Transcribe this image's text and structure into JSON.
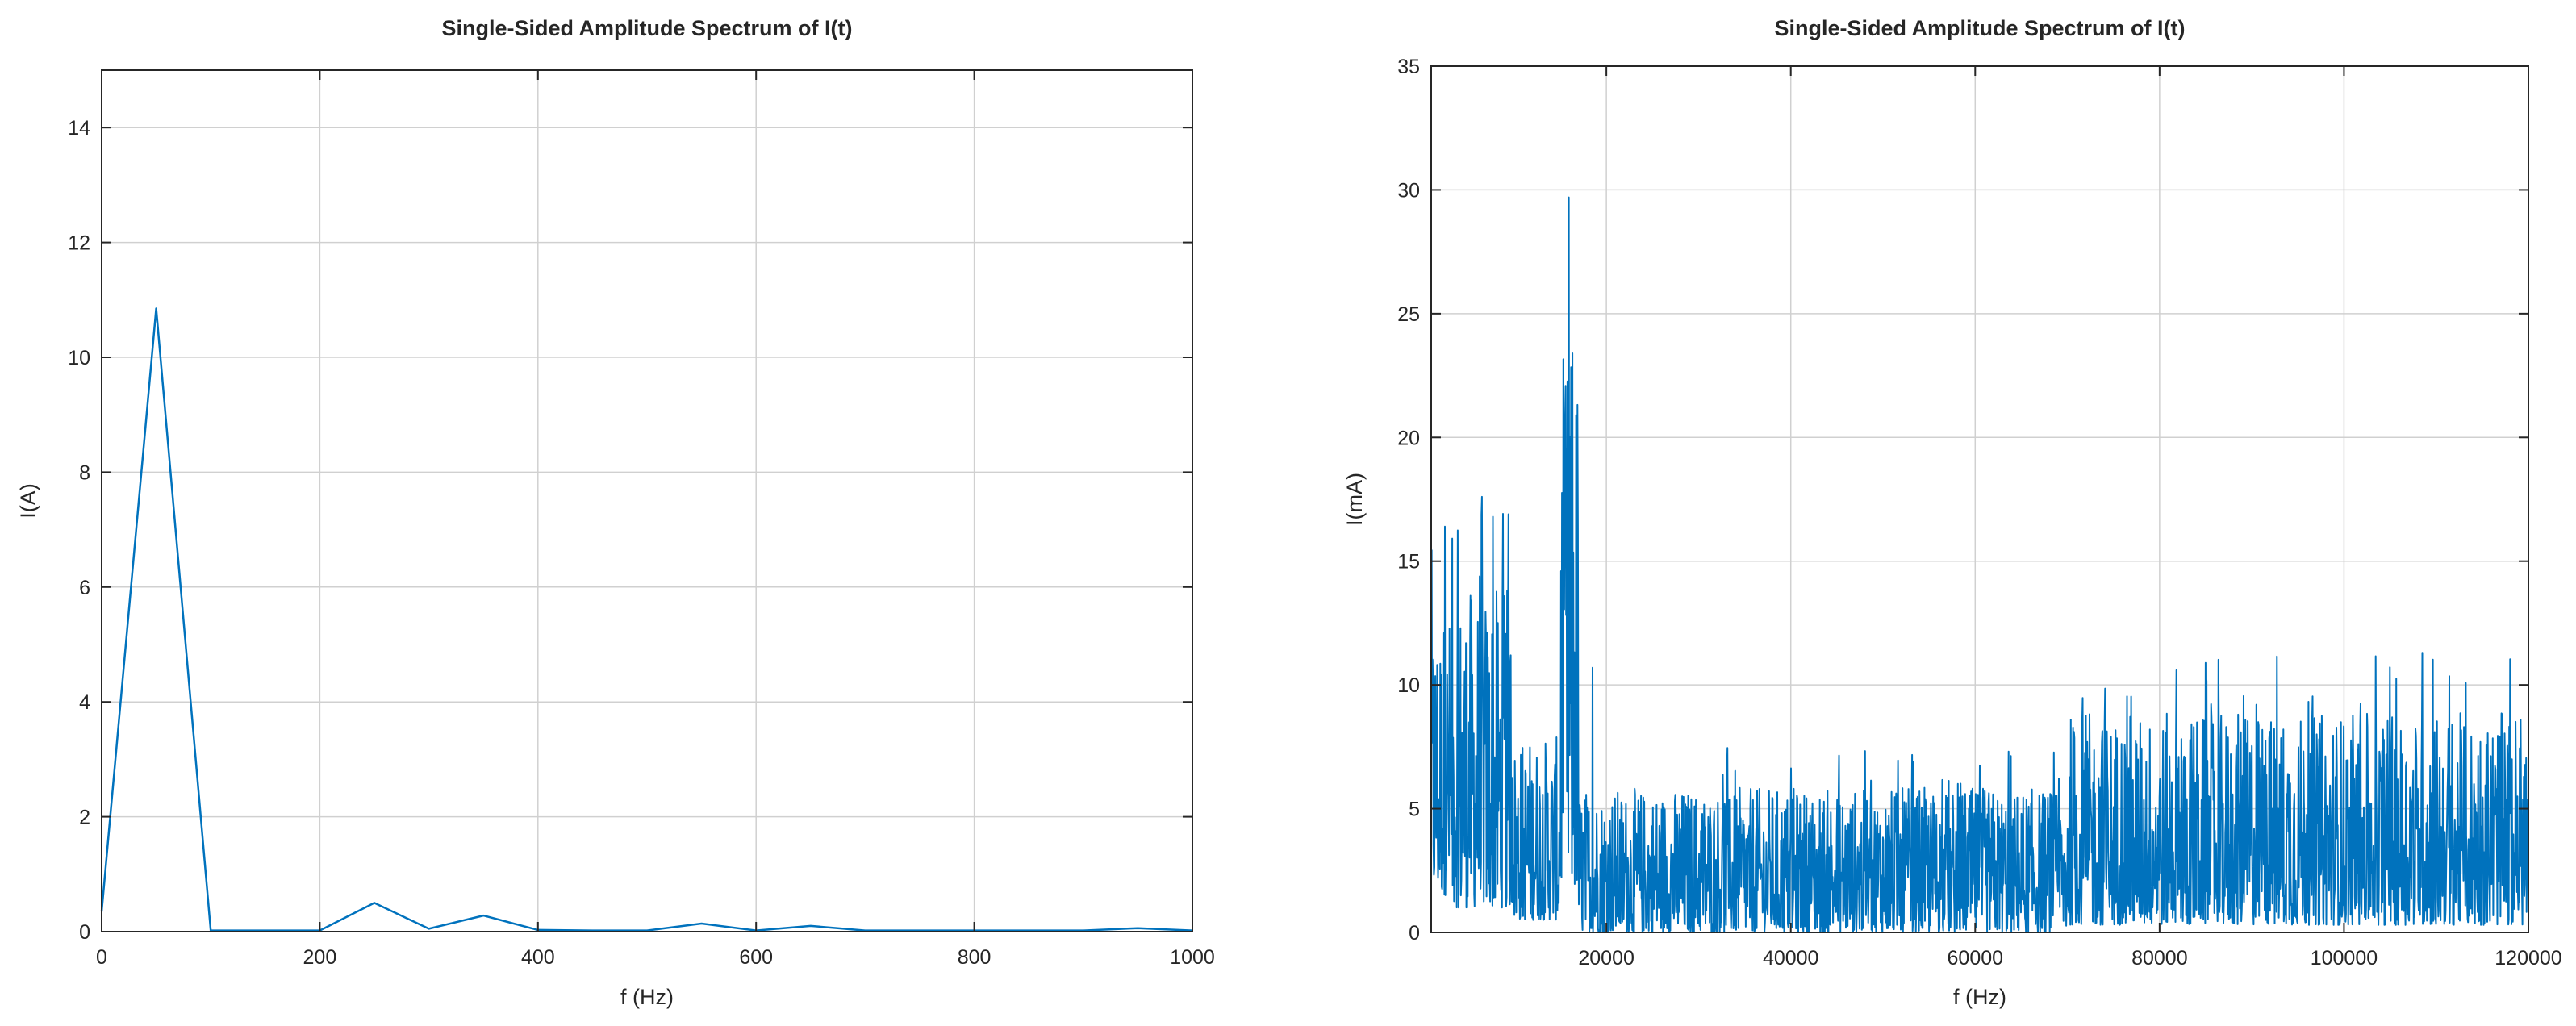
{
  "colors": {
    "series": "#0072bd",
    "grid": "#d0d0d0",
    "axes": "#262626",
    "background": "#ffffff"
  },
  "chart_data": [
    {
      "type": "line",
      "title": "Single-Sided Amplitude Spectrum of I(t)",
      "xlabel": "f (Hz)",
      "ylabel": "I(A)",
      "xlim": [
        0,
        1000
      ],
      "ylim": [
        0,
        15
      ],
      "xticks": [
        0,
        200,
        400,
        600,
        800,
        1000
      ],
      "yticks": [
        0,
        2,
        4,
        6,
        8,
        10,
        12,
        14
      ],
      "xtick_labels": [
        "0",
        "200",
        "400",
        "600",
        "800",
        "1000"
      ],
      "ytick_labels": [
        "0",
        "2",
        "4",
        "6",
        "8",
        "10",
        "12",
        "14"
      ],
      "grid": true,
      "series": [
        {
          "x": [
            0,
            50,
            100,
            150,
            200,
            250,
            300,
            350,
            400,
            450,
            500,
            550,
            600,
            650,
            700,
            750,
            800,
            850,
            900,
            950,
            1000
          ],
          "values": [
            0.35,
            10.85,
            0.02,
            0.02,
            0.02,
            0.5,
            0.05,
            0.28,
            0.03,
            0.02,
            0.02,
            0.14,
            0.02,
            0.1,
            0.02,
            0.02,
            0.02,
            0.02,
            0.02,
            0.06,
            0.02
          ]
        }
      ]
    },
    {
      "type": "line",
      "title": "Single-Sided Amplitude Spectrum of I(t)",
      "xlabel": "f (Hz)",
      "ylabel": "I(mA)",
      "xlim": [
        1000,
        120000
      ],
      "ylim": [
        0,
        35
      ],
      "xticks": [
        20000,
        40000,
        60000,
        80000,
        100000,
        120000
      ],
      "yticks": [
        0,
        5,
        10,
        15,
        20,
        25,
        30,
        35
      ],
      "xtick_labels": [
        "20000",
        "40000",
        "60000",
        "80000",
        "100000",
        "120000"
      ],
      "ytick_labels": [
        "0",
        "5",
        "10",
        "15",
        "20",
        "25",
        "30",
        "35"
      ],
      "grid": true,
      "series": [
        {
          "x": [
            1000,
            16000,
            120000
          ],
          "values": [
            7.5,
            29.7,
            3.0
          ],
          "noise_bands": [
            {
              "x_from": 1000,
              "x_to": 3000,
              "y_low": 1.5,
              "y_high": 16.4
            },
            {
              "x_from": 3000,
              "x_to": 10000,
              "y_low": 1.0,
              "y_high": 17.6
            },
            {
              "x_from": 10000,
              "x_to": 15000,
              "y_low": 0.5,
              "y_high": 10.0
            },
            {
              "x_from": 15000,
              "x_to": 17000,
              "y_low": 1.5,
              "y_high": 29.7
            },
            {
              "x_from": 17000,
              "x_to": 70000,
              "y_low": 0.0,
              "y_high": 7.5
            },
            {
              "x_from": 70000,
              "x_to": 120000,
              "y_low": 0.3,
              "y_high": 11.3
            }
          ],
          "peaks": [
            {
              "x": 2500,
              "value": 16.4
            },
            {
              "x": 6500,
              "value": 17.6
            },
            {
              "x": 7700,
              "value": 16.8
            },
            {
              "x": 15500,
              "value": 19.2
            },
            {
              "x": 15900,
              "value": 29.7
            },
            {
              "x": 16300,
              "value": 23.4
            },
            {
              "x": 18500,
              "value": 10.7
            },
            {
              "x": 108500,
              "value": 11.3
            }
          ]
        }
      ]
    }
  ]
}
